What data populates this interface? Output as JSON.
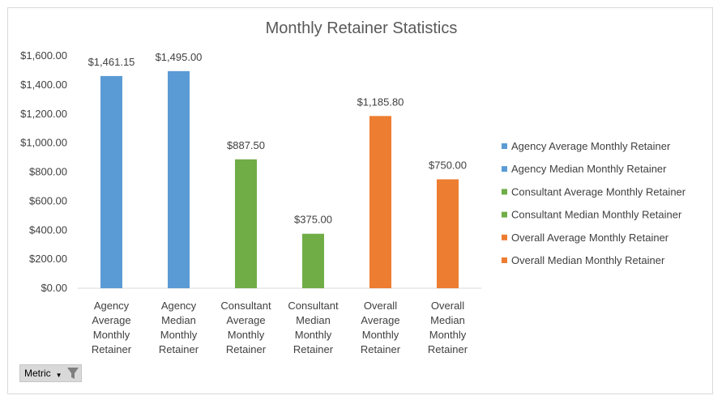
{
  "chart_data": {
    "type": "bar",
    "title": "Monthly Retainer Statistics",
    "xlabel": "",
    "ylabel": "",
    "ylim": [
      0,
      1600
    ],
    "yticks": [
      "$0.00",
      "$200.00",
      "$400.00",
      "$600.00",
      "$800.00",
      "$1,000.00",
      "$1,200.00",
      "$1,400.00",
      "$1,600.00"
    ],
    "grid": false,
    "legend_position": "right",
    "categories": [
      [
        "Agency",
        "Average",
        "Monthly",
        "Retainer"
      ],
      [
        "Agency",
        "Median",
        "Monthly",
        "Retainer"
      ],
      [
        "Consultant",
        "Average",
        "Monthly",
        "Retainer"
      ],
      [
        "Consultant",
        "Median",
        "Monthly",
        "Retainer"
      ],
      [
        "Overall",
        "Average",
        "Monthly",
        "Retainer"
      ],
      [
        "Overall",
        "Median",
        "Monthly",
        "Retainer"
      ]
    ],
    "values": [
      1461.15,
      1495.0,
      887.5,
      375.0,
      1185.8,
      750.0
    ],
    "data_labels": [
      "$1,461.15",
      "$1,495.00",
      "$887.50",
      "$375.00",
      "$1,185.80",
      "$750.00"
    ],
    "colors": [
      "#5b9bd5",
      "#5b9bd5",
      "#70ad47",
      "#70ad47",
      "#ed7d31",
      "#ed7d31"
    ],
    "legend": [
      {
        "name": "Agency Average Monthly Retainer",
        "color": "#5b9bd5"
      },
      {
        "name": "Agency Median Monthly Retainer",
        "color": "#5b9bd5"
      },
      {
        "name": "Consultant Average Monthly Retainer",
        "color": "#70ad47"
      },
      {
        "name": "Consultant Median Monthly Retainer",
        "color": "#70ad47"
      },
      {
        "name": "Overall Average Monthly Retainer",
        "color": "#ed7d31"
      },
      {
        "name": "Overall Median Monthly Retainer",
        "color": "#ed7d31"
      }
    ]
  },
  "filter_button": {
    "label": "Metric",
    "icon": "funnel-icon"
  }
}
